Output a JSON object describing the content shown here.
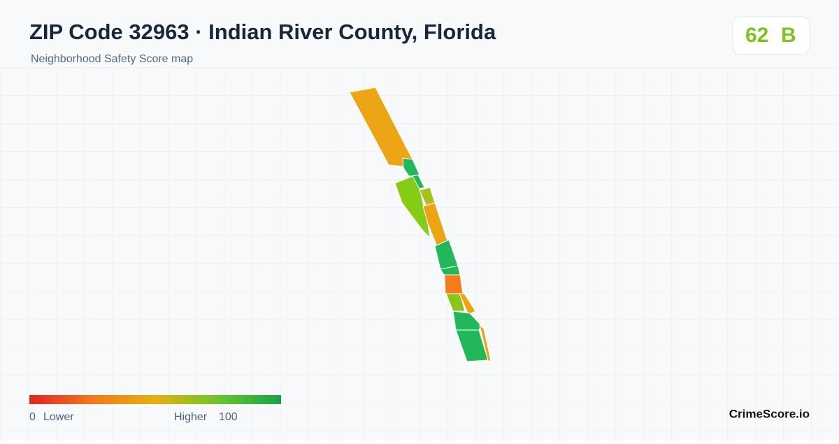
{
  "header": {
    "title": "ZIP Code 32963 · Indian River County, Florida",
    "subtitle": "Neighborhood Safety Score map"
  },
  "score": {
    "value": 62,
    "grade": "B"
  },
  "legend": {
    "min": 0,
    "min_label": "Lower",
    "max_label": "Higher",
    "max": 100
  },
  "brand": "CrimeScore.io"
}
